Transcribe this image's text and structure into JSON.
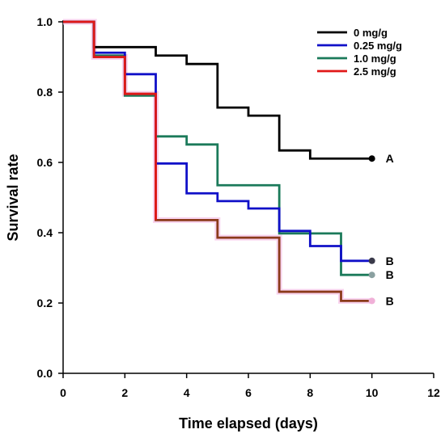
{
  "chart_data": {
    "type": "line",
    "step": true,
    "xlabel": "Time elapsed (days)",
    "ylabel": "Survival rate",
    "xlim": [
      0,
      12
    ],
    "ylim": [
      0,
      1.0
    ],
    "x_ticks": [
      "0",
      "2",
      "4",
      "6",
      "8",
      "10",
      "12"
    ],
    "y_ticks": [
      "0.0",
      "0.2",
      "0.4",
      "0.6",
      "0.8",
      "1.0"
    ],
    "grid": false,
    "legend_position": "top-right",
    "series": [
      {
        "name": "0 mg/g",
        "color": "#000000",
        "end_marker_color": "#000000",
        "end_label": "A",
        "x": [
          0,
          1,
          3,
          4,
          5,
          6,
          7,
          8,
          10
        ],
        "y": [
          1.0,
          0.928,
          0.904,
          0.88,
          0.756,
          0.733,
          0.634,
          0.611,
          0.611
        ]
      },
      {
        "name": "0.25 mg/g",
        "color": "#1010c8",
        "end_marker_color": "#3a3a4a",
        "end_label": "B",
        "x": [
          0,
          1,
          2,
          3,
          4,
          5,
          6,
          7,
          8,
          9,
          10
        ],
        "y": [
          1.0,
          0.912,
          0.851,
          0.597,
          0.512,
          0.49,
          0.469,
          0.405,
          0.362,
          0.32,
          0.32
        ]
      },
      {
        "name": "1.0 mg/g",
        "color": "#1b7a5a",
        "end_marker_color": "#8aa0a0",
        "end_label": "B",
        "x": [
          0,
          1,
          2,
          3,
          4,
          5,
          7,
          9,
          10
        ],
        "y": [
          1.0,
          0.904,
          0.79,
          0.674,
          0.651,
          0.535,
          0.398,
          0.28,
          0.28
        ]
      },
      {
        "name": "2.5 mg/g",
        "color": "#e01818",
        "end_marker_color": "#f0b0d8",
        "end_label": "B",
        "x": [
          0,
          1,
          2,
          3,
          5,
          7,
          9,
          10
        ],
        "y": [
          1.0,
          0.9,
          0.795,
          0.436,
          0.386,
          0.232,
          0.206,
          0.206
        ]
      }
    ]
  }
}
